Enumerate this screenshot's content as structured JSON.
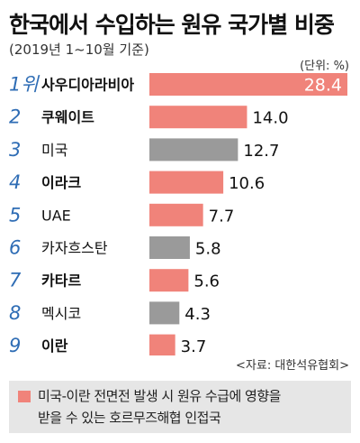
{
  "title": "한국에서 수입하는 원유 국가별 비중",
  "subtitle": "(2019년 1~10월 기준)",
  "unit_label": "(단위: %)",
  "source": "<자료: 대한석유협회>",
  "note": {
    "line1": "미국-이란 전면전 발생 시 원유 수급에 영향을",
    "line2": "받을 수 있는 호르무즈해협 인접국"
  },
  "colors": {
    "salmon": "#f0837a",
    "gray": "#9a9a9a",
    "rank": "#2f6db5",
    "note_bg": "#e6e6e6"
  },
  "chart_data": {
    "type": "bar",
    "orientation": "horizontal",
    "unit": "%",
    "ranks": [
      "1위",
      "2",
      "3",
      "4",
      "5",
      "6",
      "7",
      "8",
      "9"
    ],
    "categories": [
      "사우디아라비아",
      "쿠웨이트",
      "미국",
      "이라크",
      "UAE",
      "카자흐스탄",
      "카타르",
      "멕시코",
      "이란"
    ],
    "values": [
      28.4,
      14.0,
      12.7,
      10.6,
      7.7,
      5.8,
      5.6,
      4.3,
      3.7
    ],
    "value_labels": [
      "28.4",
      "14.0",
      "12.7",
      "10.6",
      "7.7",
      "5.8",
      "5.6",
      "4.3",
      "3.7"
    ],
    "hormuz_adjacent": [
      true,
      true,
      false,
      true,
      true,
      false,
      true,
      false,
      true
    ],
    "bold_categories": [
      true,
      true,
      false,
      true,
      false,
      false,
      true,
      false,
      true
    ],
    "xlim": [
      0,
      28.4
    ]
  }
}
